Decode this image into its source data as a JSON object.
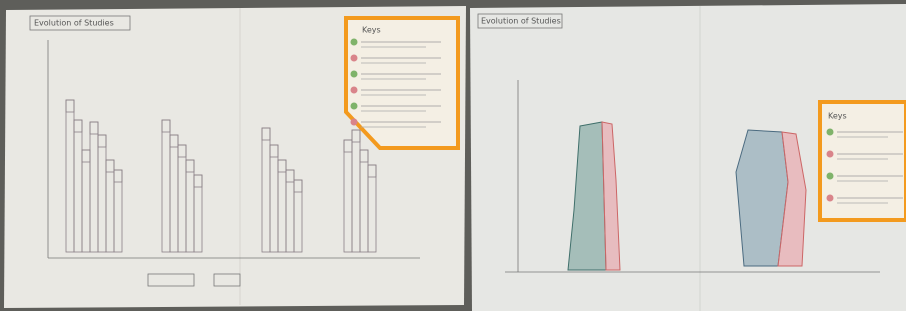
{
  "sheets": [
    {
      "title": "Evolution of Studies",
      "legend_title": "Keys"
    },
    {
      "title": "Evolution of Studies",
      "legend_title": "Keys"
    }
  ]
}
